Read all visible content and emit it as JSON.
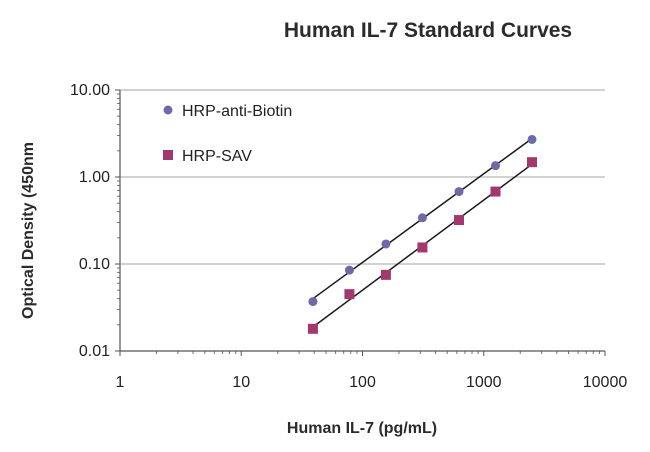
{
  "chart_data": {
    "type": "scatter",
    "title": "Human IL-7 Standard Curves",
    "xlabel": "Human IL-7 (pg/mL)",
    "ylabel": "Optical Density (450nm",
    "x_scale": "log",
    "y_scale": "log",
    "xlim": [
      1,
      10000
    ],
    "ylim": [
      0.01,
      10
    ],
    "x_tick_labels": [
      "1",
      "10",
      "100",
      "1000",
      "10000"
    ],
    "y_tick_labels": [
      "0.01",
      "0.10",
      "1.00",
      "10.00"
    ],
    "grid": "horizontal",
    "legend_position": "top-left",
    "series": [
      {
        "name": "HRP-anti-Biotin",
        "marker": "circle",
        "color": "#6e6aa6",
        "trendline": true,
        "x": [
          39,
          78,
          156,
          312,
          625,
          1250,
          2500
        ],
        "y": [
          0.037,
          0.085,
          0.17,
          0.34,
          0.68,
          1.35,
          2.7
        ]
      },
      {
        "name": "HRP-SAV",
        "marker": "square",
        "color": "#a3386c",
        "trendline": true,
        "x": [
          39,
          78,
          156,
          312,
          625,
          1250,
          2500
        ],
        "y": [
          0.018,
          0.045,
          0.075,
          0.155,
          0.32,
          0.68,
          1.48
        ]
      }
    ]
  }
}
